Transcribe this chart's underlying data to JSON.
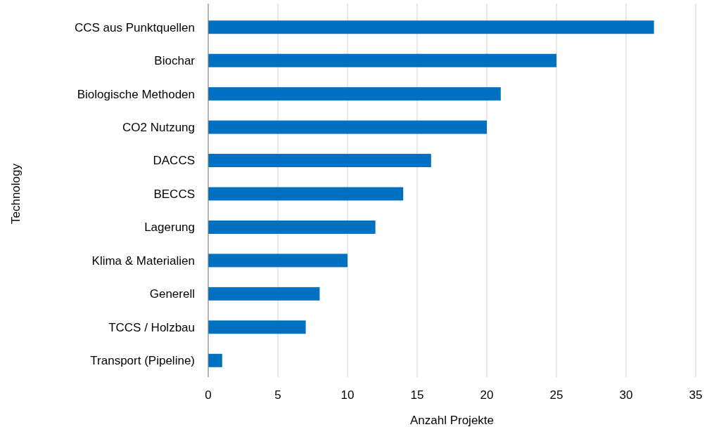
{
  "chart_data": {
    "type": "bar",
    "orientation": "horizontal",
    "xlabel": "Anzahl Projekte",
    "ylabel": "Technology",
    "categories": [
      "CCS aus Punktquellen",
      "Biochar",
      "Biologische Methoden",
      "CO2 Nutzung",
      "DACCS",
      "BECCS",
      "Lagerung",
      "Klima & Materialien",
      "Generell",
      "TCCS / Holzbau",
      "Transport (Pipeline)"
    ],
    "values": [
      32,
      25,
      21,
      20,
      16,
      14,
      12,
      10,
      8,
      7,
      1
    ],
    "color": "#0070c0",
    "xlim": [
      0,
      35
    ],
    "xticks": [
      0,
      5,
      10,
      15,
      20,
      25,
      30,
      35
    ],
    "grid": "x"
  }
}
